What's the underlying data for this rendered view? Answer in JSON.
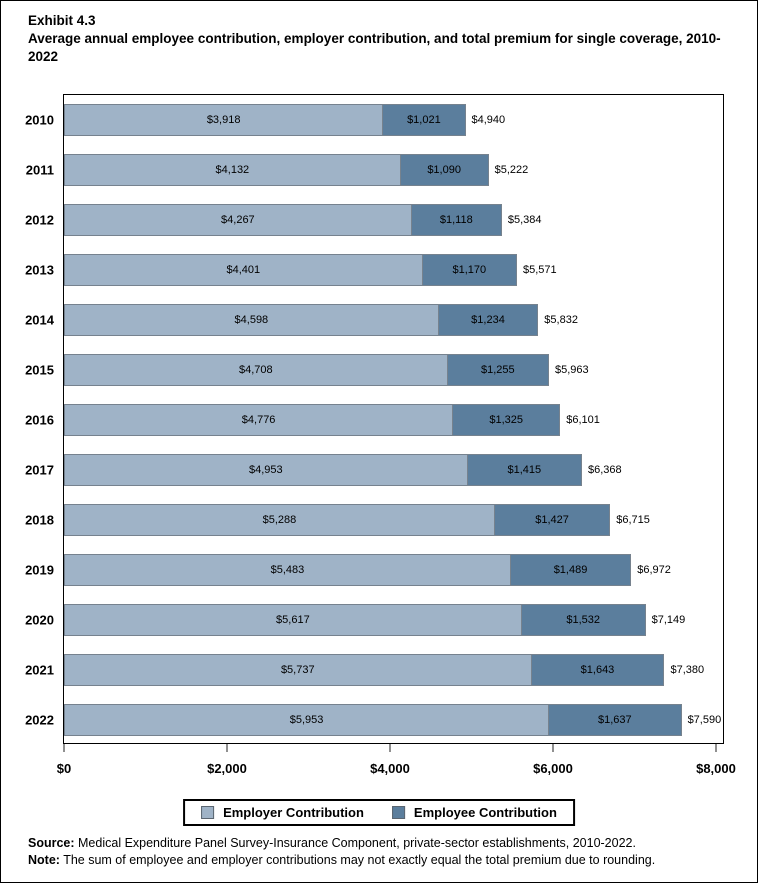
{
  "page": {
    "title_line1": "Exhibit 4.3",
    "title_line2": "Average annual employee contribution, employer contribution, and total premium for single coverage, 2010-2022"
  },
  "chart_data": {
    "type": "bar",
    "orientation": "horizontal-stacked",
    "title": "Average annual employee contribution, employer contribution, and total premium for single coverage, 2010-2022",
    "categories": [
      "2010",
      "2011",
      "2012",
      "2013",
      "2014",
      "2015",
      "2016",
      "2017",
      "2018",
      "2019",
      "2020",
      "2021",
      "2022"
    ],
    "series": [
      {
        "name": "Employer Contribution",
        "color": "#9FB3C7",
        "values": [
          3918,
          4132,
          4267,
          4401,
          4598,
          4708,
          4776,
          4953,
          5288,
          5483,
          5617,
          5737,
          5953
        ],
        "labels": [
          "$3,918",
          "$4,132",
          "$4,267",
          "$4,401",
          "$4,598",
          "$4,708",
          "$4,776",
          "$4,953",
          "$5,288",
          "$5,483",
          "$5,617",
          "$5,737",
          "$5,953"
        ]
      },
      {
        "name": "Employee Contribution",
        "color": "#5B7E9D",
        "values": [
          1021,
          1090,
          1118,
          1170,
          1234,
          1255,
          1325,
          1415,
          1427,
          1489,
          1532,
          1643,
          1637
        ],
        "labels": [
          "$1,021",
          "$1,090",
          "$1,118",
          "$1,170",
          "$1,234",
          "$1,255",
          "$1,325",
          "$1,415",
          "$1,427",
          "$1,489",
          "$1,532",
          "$1,643",
          "$1,637"
        ]
      }
    ],
    "totals": {
      "name": "Total Premium",
      "values": [
        4940,
        5222,
        5384,
        5571,
        5832,
        5963,
        6101,
        6368,
        6715,
        6972,
        7149,
        7380,
        7590
      ],
      "labels": [
        "$4,940",
        "$5,222",
        "$5,384",
        "$5,571",
        "$5,832",
        "$5,963",
        "$6,101",
        "$6,368",
        "$6,715",
        "$6,972",
        "$7,149",
        "$7,380",
        "$7,590"
      ]
    },
    "x_axis": {
      "tick_values": [
        0,
        2000,
        4000,
        6000,
        8000
      ],
      "tick_labels": [
        "$0",
        "$2,000",
        "$4,000",
        "$6,000",
        "$8,000"
      ],
      "axis_max": 8086,
      "grid": false
    },
    "legend_position": "bottom-center"
  },
  "footer": {
    "source_label": "Source:",
    "source_text": " Medical Expenditure Panel Survey-Insurance Component, private-sector establishments, 2010-2022.",
    "note_label": "Note:",
    "note_text": " The sum of employee and employer contributions may not exactly equal the total premium due to rounding."
  }
}
